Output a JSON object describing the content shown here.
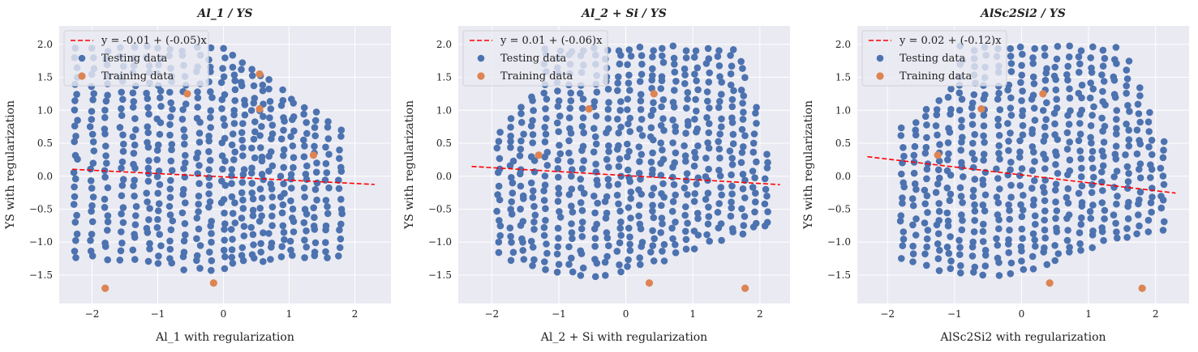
{
  "colors": {
    "background": "#eaeaf2",
    "grid": "#ffffff",
    "testing": "#4c72b0",
    "training": "#dd8452",
    "fit": "#ff0000"
  },
  "chart_data": [
    {
      "type": "scatter",
      "title": "Al_1 / YS",
      "xlabel": "Al_1 with regularization",
      "ylabel": "YS with regularization",
      "xlim": [
        -2.5,
        2.55
      ],
      "ylim": [
        -1.93,
        2.28
      ],
      "xticks": [
        "−2",
        "−1",
        "0",
        "1",
        "2"
      ],
      "yticks": [
        "−1.5",
        "−1.0",
        "−0.5",
        "0.0",
        "0.5",
        "1.0",
        "1.5",
        "2.0"
      ],
      "legend_position": "upper-left",
      "fit": {
        "label": "y = -0.01 + (-0.05)x",
        "intercept": -0.01,
        "slope": -0.05,
        "x": [
          -2.3,
          2.3
        ]
      },
      "testing_label": "Testing data",
      "training_label": "Training data",
      "testing_columns": [
        -2.25,
        -2.0,
        -1.78,
        -1.55,
        -1.35,
        -1.15,
        -0.98,
        -0.8,
        -0.6,
        -0.38,
        -0.2,
        0.0,
        0.15,
        0.3,
        0.45,
        0.58,
        0.72,
        0.9,
        1.05,
        1.25,
        1.4,
        1.58,
        1.78
      ],
      "training": [
        [
          -1.8,
          -1.7
        ],
        [
          -0.15,
          -1.62
        ],
        [
          -0.55,
          1.25
        ],
        [
          0.55,
          1.55
        ],
        [
          0.55,
          1.02
        ],
        [
          1.37,
          0.32
        ]
      ]
    },
    {
      "type": "scatter",
      "title": "Al_2 + Si / YS",
      "xlabel": "Al_2 + Si with regularization",
      "ylabel": "YS with regularization",
      "xlim": [
        -2.5,
        2.45
      ],
      "ylim": [
        -1.93,
        2.28
      ],
      "xticks": [
        "−2",
        "−1",
        "0",
        "1",
        "2"
      ],
      "yticks": [
        "−1.5",
        "−1.0",
        "−0.5",
        "0.0",
        "0.5",
        "1.0",
        "1.5",
        "2.0"
      ],
      "legend_position": "upper-left",
      "fit": {
        "label": "y = 0.01 + (-0.06)x",
        "intercept": 0.01,
        "slope": -0.06,
        "x": [
          -2.3,
          2.3
        ]
      },
      "testing_label": "Testing data",
      "training_label": "Training data",
      "testing_columns": [
        -1.9,
        -1.7,
        -1.55,
        -1.38,
        -1.2,
        -1.0,
        -0.82,
        -0.65,
        -0.45,
        -0.28,
        -0.1,
        0.05,
        0.22,
        0.4,
        0.55,
        0.72,
        0.9,
        1.05,
        1.22,
        1.4,
        1.58,
        1.75,
        1.92,
        2.1
      ],
      "training": [
        [
          -1.3,
          0.32
        ],
        [
          -0.55,
          1.02
        ],
        [
          0.42,
          1.25
        ],
        [
          0.35,
          -1.62
        ],
        [
          1.78,
          -1.7
        ]
      ]
    },
    {
      "type": "scatter",
      "title": "AlSc2Si2 / YS",
      "xlabel": "AlSc2Si2 with regularization",
      "ylabel": "YS with regularization",
      "xlim": [
        -2.45,
        2.5
      ],
      "ylim": [
        -1.93,
        2.28
      ],
      "xticks": [
        "−2",
        "−1",
        "0",
        "1",
        "2"
      ],
      "yticks": [
        "−1.5",
        "−1.0",
        "−0.5",
        "0.0",
        "0.5",
        "1.0",
        "1.5",
        "2.0"
      ],
      "legend_position": "upper-left",
      "fit": {
        "label": "y = 0.02 + (-0.12)x",
        "intercept": 0.02,
        "slope": -0.12,
        "x": [
          -2.3,
          2.3
        ]
      },
      "testing_label": "Testing data",
      "training_label": "Training data",
      "testing_columns": [
        -1.78,
        -1.6,
        -1.42,
        -1.25,
        -1.08,
        -0.9,
        -0.72,
        -0.55,
        -0.35,
        -0.18,
        0.0,
        0.18,
        0.35,
        0.52,
        0.7,
        0.88,
        1.05,
        1.22,
        1.4,
        1.58,
        1.75,
        1.92,
        2.1
      ],
      "training": [
        [
          -1.25,
          0.32
        ],
        [
          -0.6,
          1.02
        ],
        [
          0.32,
          1.25
        ],
        [
          0.42,
          -1.62
        ],
        [
          1.8,
          -1.7
        ]
      ]
    }
  ]
}
